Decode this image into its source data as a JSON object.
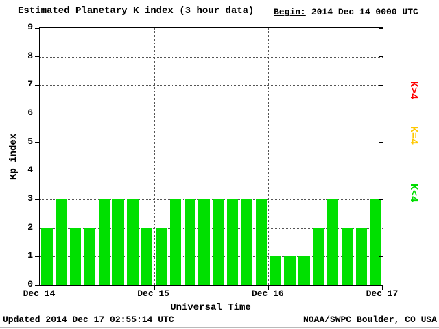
{
  "title": "Estimated Planetary K index (3 hour data)",
  "begin": {
    "label": "Begin:",
    "value": "2014 Dec 14 0000 UTC"
  },
  "footer": {
    "updated": "Updated 2014 Dec 17 02:55:14 UTC",
    "source": "NOAA/SWPC Boulder, CO USA"
  },
  "chart_data": {
    "type": "bar",
    "title": "Estimated Planetary K index (3 hour data)",
    "xlabel": "Universal Time",
    "ylabel": "Kp index",
    "ylim": [
      0,
      9
    ],
    "yticks": [
      0,
      1,
      2,
      3,
      4,
      5,
      6,
      7,
      8,
      9
    ],
    "xticks": [
      "Dec 14",
      "Dec 15",
      "Dec 16",
      "Dec 17"
    ],
    "bars_per_day": 8,
    "interval_hours": 3,
    "bar_color": "#00e000",
    "grid": "dotted horizontal at each Kp integer, dotted vertical at day boundaries",
    "values": [
      2,
      3,
      2,
      2,
      3,
      3,
      3,
      2,
      2,
      3,
      3,
      3,
      3,
      3,
      3,
      3,
      1,
      1,
      1,
      2,
      3,
      2,
      2,
      3
    ],
    "legend": [
      {
        "label": "K>4",
        "color": "#ff0000"
      },
      {
        "label": "K=4",
        "color": "#ffc800"
      },
      {
        "label": "K<4",
        "color": "#00dd00"
      }
    ]
  }
}
